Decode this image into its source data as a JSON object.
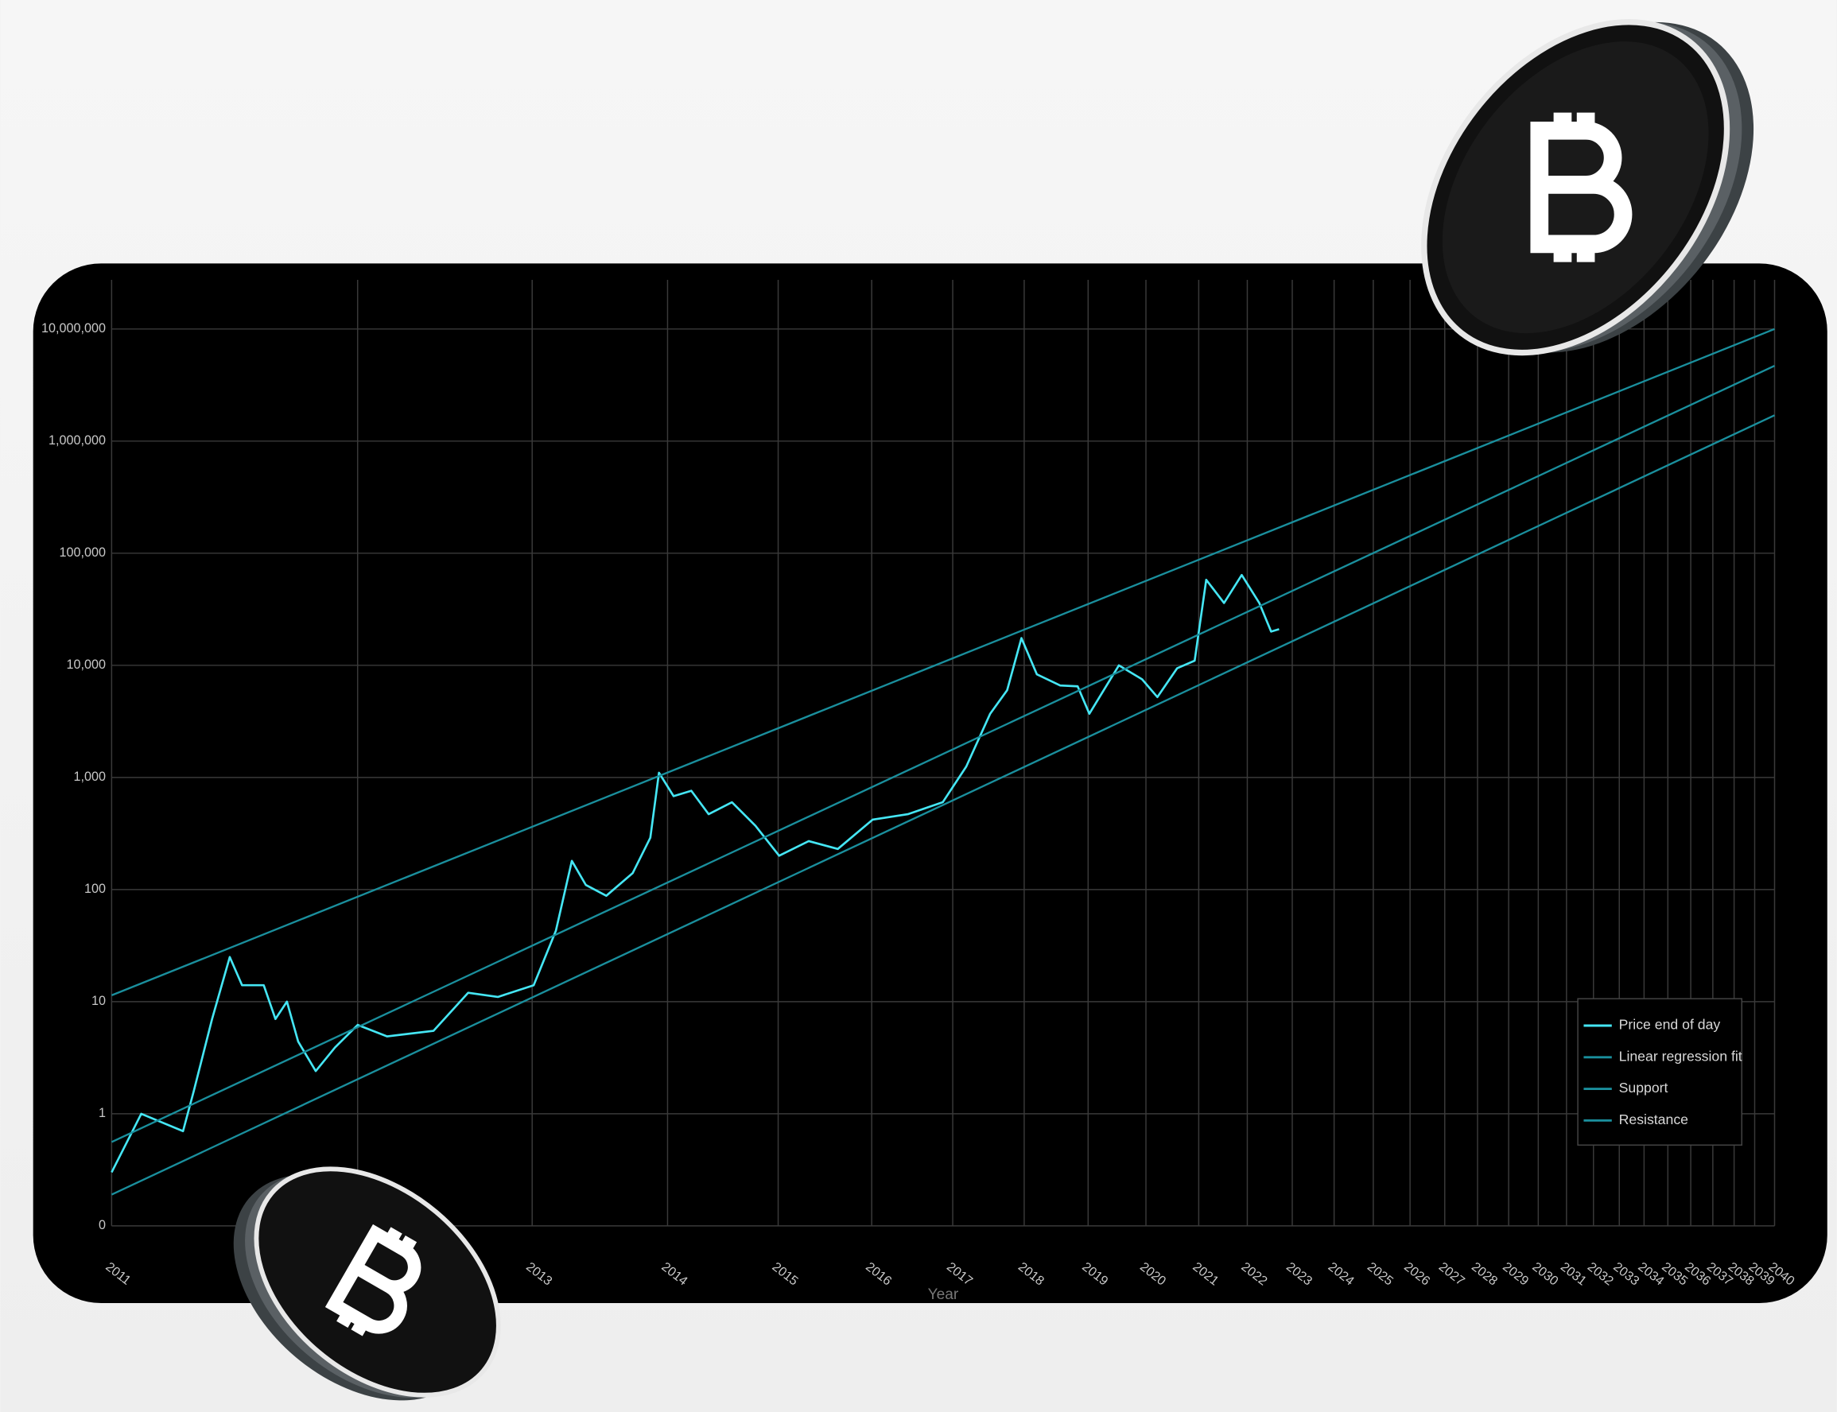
{
  "chart_data": {
    "type": "line",
    "x_label": "Year",
    "xscale": "log",
    "x_log_base_year": 2009,
    "xlim": [
      2011,
      2040
    ],
    "xticks": [
      2011,
      2012,
      2013,
      2014,
      2015,
      2016,
      2017,
      2018,
      2019,
      2020,
      2021,
      2022,
      2023,
      2024,
      2025,
      2026,
      2027,
      2028,
      2029,
      2030,
      2031,
      2032,
      2033,
      2034,
      2035,
      2036,
      2037,
      2038,
      2039,
      2040
    ],
    "yscale": "log",
    "ylim": [
      0.1,
      10000000
    ],
    "yticks": [
      {
        "value": 0.1,
        "label": "0"
      },
      1,
      10,
      100,
      {
        "value": 1000,
        "label": "1,000"
      },
      {
        "value": 10000,
        "label": "10,000"
      },
      {
        "value": 100000,
        "label": "100,000"
      },
      {
        "value": 1000000,
        "label": "1,000,000"
      },
      {
        "value": 10000000,
        "label": "10,000,000"
      }
    ],
    "grid": true,
    "legend": "lower right",
    "series": [
      {
        "name": "Price end of day",
        "color": "#45e6f4",
        "x": [
          2011.0,
          2011.1,
          2011.25,
          2011.29,
          2011.36,
          2011.43,
          2011.48,
          2011.57,
          2011.62,
          2011.67,
          2011.72,
          2011.8,
          2011.89,
          2012.0,
          2012.15,
          2012.4,
          2012.6,
          2012.78,
          2013.01,
          2013.16,
          2013.27,
          2013.37,
          2013.52,
          2013.72,
          2013.86,
          2013.93,
          2014.05,
          2014.2,
          2014.35,
          2014.56,
          2014.78,
          2015.01,
          2015.31,
          2015.62,
          2016.01,
          2016.43,
          2016.87,
          2017.18,
          2017.51,
          2017.75,
          2017.96,
          2018.19,
          2018.55,
          2018.83,
          2019.02,
          2019.52,
          2019.93,
          2020.21,
          2020.58,
          2020.92,
          2021.15,
          2021.51,
          2021.88,
          2022.26,
          2022.52,
          2022.7
        ],
        "values": [
          0.3,
          1.0,
          0.7,
          1.6,
          7,
          25,
          14,
          14,
          7,
          10,
          4.4,
          2.4,
          3.9,
          6.2,
          4.9,
          5.5,
          12,
          11,
          14,
          43,
          180,
          110,
          88,
          140,
          290,
          1100,
          680,
          760,
          470,
          600,
          370,
          200,
          270,
          230,
          420,
          470,
          600,
          1250,
          3700,
          6000,
          17500,
          8300,
          6600,
          6500,
          3700,
          10000,
          7500,
          5200,
          9400,
          11000,
          58000,
          36000,
          64000,
          36000,
          20000,
          21000
        ]
      },
      {
        "name": "Linear regression fit",
        "color": "#1a8f9d",
        "x": [
          2011,
          2040
        ],
        "values": [
          0.56,
          4700000
        ]
      },
      {
        "name": "Support",
        "color": "#1a8f9d",
        "x": [
          2011,
          2040
        ],
        "values": [
          0.19,
          1700000
        ]
      },
      {
        "name": "Resistance",
        "color": "#1a8f9d",
        "x": [
          2011,
          2040
        ],
        "values": [
          11.4,
          10000000
        ]
      }
    ]
  }
}
